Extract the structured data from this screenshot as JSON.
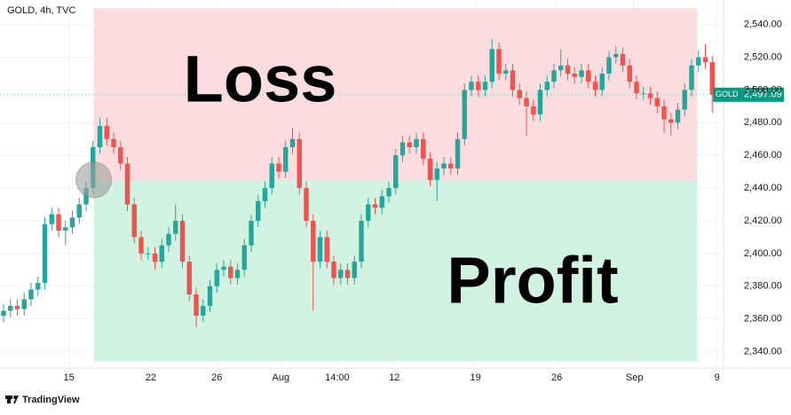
{
  "chart_data": {
    "type": "candlestick",
    "header": "GOLD, 4h, TVC",
    "footer": "TradingView",
    "up_color": "#26a69a",
    "down_color": "#ef5350",
    "grid": true,
    "xlim": [
      0,
      104
    ],
    "ylim": [
      2330,
      2555
    ],
    "xticks": [
      {
        "value": 9.5,
        "label": "15"
      },
      {
        "value": 21.4,
        "label": "22"
      },
      {
        "value": 31,
        "label": "26"
      },
      {
        "value": 40.3,
        "label": "Aug"
      },
      {
        "value": 48.5,
        "label": "14:00"
      },
      {
        "value": 56.8,
        "label": "12"
      },
      {
        "value": 68.6,
        "label": "19"
      },
      {
        "value": 80.4,
        "label": "26"
      },
      {
        "value": 91.7,
        "label": "Sep"
      },
      {
        "value": 103.7,
        "label": "9"
      }
    ],
    "yticks": [
      {
        "value": 2340,
        "label": "2,340.00"
      },
      {
        "value": 2360,
        "label": "2,360.00"
      },
      {
        "value": 2380,
        "label": "2,380.00"
      },
      {
        "value": 2400,
        "label": "2,400.00"
      },
      {
        "value": 2420,
        "label": "2,420.00"
      },
      {
        "value": 2440,
        "label": "2,440.00"
      },
      {
        "value": 2460,
        "label": "2,460.00"
      },
      {
        "value": 2480,
        "label": "2,480.00"
      },
      {
        "value": 2500,
        "label": "2,500.00"
      },
      {
        "value": 2520,
        "label": "2,520.00"
      },
      {
        "value": 2540,
        "label": "2,540.00"
      }
    ],
    "zones": [
      {
        "label": "Loss",
        "color": "#fcd9dc",
        "xlim": [
          13.1,
          100.8
        ],
        "ylim": [
          2445,
          2550
        ]
      },
      {
        "label": "Profit",
        "color": "#cdf2df",
        "xlim": [
          13.1,
          100.8
        ],
        "ylim": [
          2334,
          2445
        ]
      }
    ],
    "marker": {
      "x": 13.1,
      "y": 2445,
      "color": "#9e9e9e"
    },
    "last_price": {
      "symbol": "GOLD",
      "value": 2497.09,
      "label": "2,497.09",
      "color": "#089981"
    },
    "x": [
      0,
      1,
      2,
      3,
      4,
      5,
      6,
      7,
      8,
      9,
      10,
      11,
      12,
      13,
      14,
      15,
      16,
      17,
      18,
      19,
      20,
      21,
      22,
      23,
      24,
      25,
      26,
      27,
      28,
      29,
      30,
      31,
      32,
      33,
      34,
      35,
      36,
      37,
      38,
      39,
      40,
      41,
      42,
      43,
      44,
      45,
      46,
      47,
      48,
      49,
      50,
      51,
      52,
      53,
      54,
      55,
      56,
      57,
      58,
      59,
      60,
      61,
      62,
      63,
      64,
      65,
      66,
      67,
      68,
      69,
      70,
      71,
      72,
      73,
      74,
      75,
      76,
      77,
      78,
      79,
      80,
      81,
      82,
      83,
      84,
      85,
      86,
      87,
      88,
      89,
      90,
      91,
      92,
      93,
      94,
      95,
      96,
      97,
      98,
      99,
      100,
      101,
      102,
      103
    ],
    "open": [
      2362,
      2365,
      2368,
      2366,
      2372,
      2378,
      2382,
      2418,
      2424,
      2414,
      2416,
      2422,
      2430,
      2440,
      2465,
      2478,
      2470,
      2465,
      2455,
      2430,
      2410,
      2400,
      2400,
      2395,
      2405,
      2412,
      2420,
      2395,
      2375,
      2362,
      2368,
      2380,
      2390,
      2392,
      2385,
      2390,
      2405,
      2420,
      2432,
      2440,
      2455,
      2450,
      2465,
      2470,
      2440,
      2420,
      2395,
      2410,
      2395,
      2385,
      2390,
      2385,
      2395,
      2420,
      2430,
      2428,
      2435,
      2440,
      2460,
      2468,
      2465,
      2470,
      2458,
      2445,
      2452,
      2455,
      2452,
      2470,
      2500,
      2505,
      2500,
      2505,
      2525,
      2510,
      2512,
      2500,
      2495,
      2490,
      2485,
      2500,
      2505,
      2512,
      2515,
      2510,
      2508,
      2512,
      2505,
      2500,
      2510,
      2520,
      2522,
      2515,
      2505,
      2498,
      2498,
      2495,
      2490,
      2482,
      2480,
      2488,
      2500,
      2515,
      2520,
      2517
    ],
    "high": [
      2369,
      2372,
      2372,
      2376,
      2382,
      2386,
      2422,
      2428,
      2428,
      2420,
      2426,
      2434,
      2444,
      2469,
      2483,
      2483,
      2474,
      2469,
      2459,
      2434,
      2414,
      2404,
      2404,
      2409,
      2416,
      2430,
      2424,
      2399,
      2379,
      2372,
      2384,
      2394,
      2396,
      2396,
      2394,
      2409,
      2424,
      2436,
      2444,
      2459,
      2459,
      2469,
      2477,
      2474,
      2444,
      2424,
      2414,
      2414,
      2399,
      2394,
      2394,
      2399,
      2424,
      2434,
      2434,
      2439,
      2444,
      2464,
      2472,
      2472,
      2474,
      2474,
      2462,
      2456,
      2459,
      2459,
      2474,
      2504,
      2509,
      2509,
      2509,
      2531,
      2529,
      2516,
      2516,
      2504,
      2499,
      2494,
      2504,
      2509,
      2516,
      2525,
      2519,
      2514,
      2516,
      2516,
      2509,
      2514,
      2524,
      2527,
      2526,
      2519,
      2509,
      2502,
      2502,
      2499,
      2494,
      2486,
      2492,
      2504,
      2519,
      2524,
      2528,
      2521
    ],
    "low": [
      2358,
      2361,
      2362,
      2362,
      2368,
      2374,
      2378,
      2414,
      2410,
      2405,
      2412,
      2418,
      2426,
      2436,
      2461,
      2466,
      2461,
      2451,
      2426,
      2406,
      2396,
      2396,
      2390,
      2391,
      2401,
      2408,
      2391,
      2371,
      2355,
      2358,
      2364,
      2376,
      2386,
      2381,
      2381,
      2386,
      2401,
      2416,
      2428,
      2436,
      2446,
      2446,
      2461,
      2436,
      2416,
      2365,
      2391,
      2391,
      2381,
      2381,
      2381,
      2381,
      2391,
      2416,
      2424,
      2424,
      2431,
      2436,
      2456,
      2461,
      2461,
      2454,
      2441,
      2432,
      2448,
      2448,
      2448,
      2466,
      2496,
      2496,
      2496,
      2501,
      2506,
      2506,
      2496,
      2491,
      2472,
      2481,
      2481,
      2496,
      2501,
      2508,
      2506,
      2504,
      2504,
      2501,
      2496,
      2496,
      2506,
      2516,
      2511,
      2501,
      2494,
      2494,
      2491,
      2486,
      2474,
      2472,
      2476,
      2484,
      2496,
      2511,
      2513,
      2486
    ],
    "close": [
      2365,
      2368,
      2366,
      2372,
      2378,
      2382,
      2418,
      2424,
      2414,
      2416,
      2422,
      2430,
      2440,
      2465,
      2478,
      2470,
      2465,
      2455,
      2430,
      2410,
      2400,
      2400,
      2395,
      2405,
      2412,
      2420,
      2395,
      2375,
      2362,
      2368,
      2380,
      2390,
      2392,
      2385,
      2390,
      2405,
      2420,
      2432,
      2440,
      2455,
      2450,
      2465,
      2470,
      2440,
      2420,
      2395,
      2410,
      2395,
      2385,
      2390,
      2385,
      2395,
      2420,
      2430,
      2428,
      2435,
      2440,
      2460,
      2468,
      2465,
      2470,
      2458,
      2445,
      2452,
      2455,
      2452,
      2470,
      2500,
      2505,
      2500,
      2505,
      2525,
      2510,
      2512,
      2500,
      2495,
      2490,
      2485,
      2500,
      2505,
      2512,
      2515,
      2510,
      2508,
      2512,
      2505,
      2500,
      2510,
      2520,
      2522,
      2515,
      2505,
      2498,
      2498,
      2495,
      2490,
      2482,
      2480,
      2488,
      2500,
      2515,
      2520,
      2517,
      2497.09
    ]
  }
}
